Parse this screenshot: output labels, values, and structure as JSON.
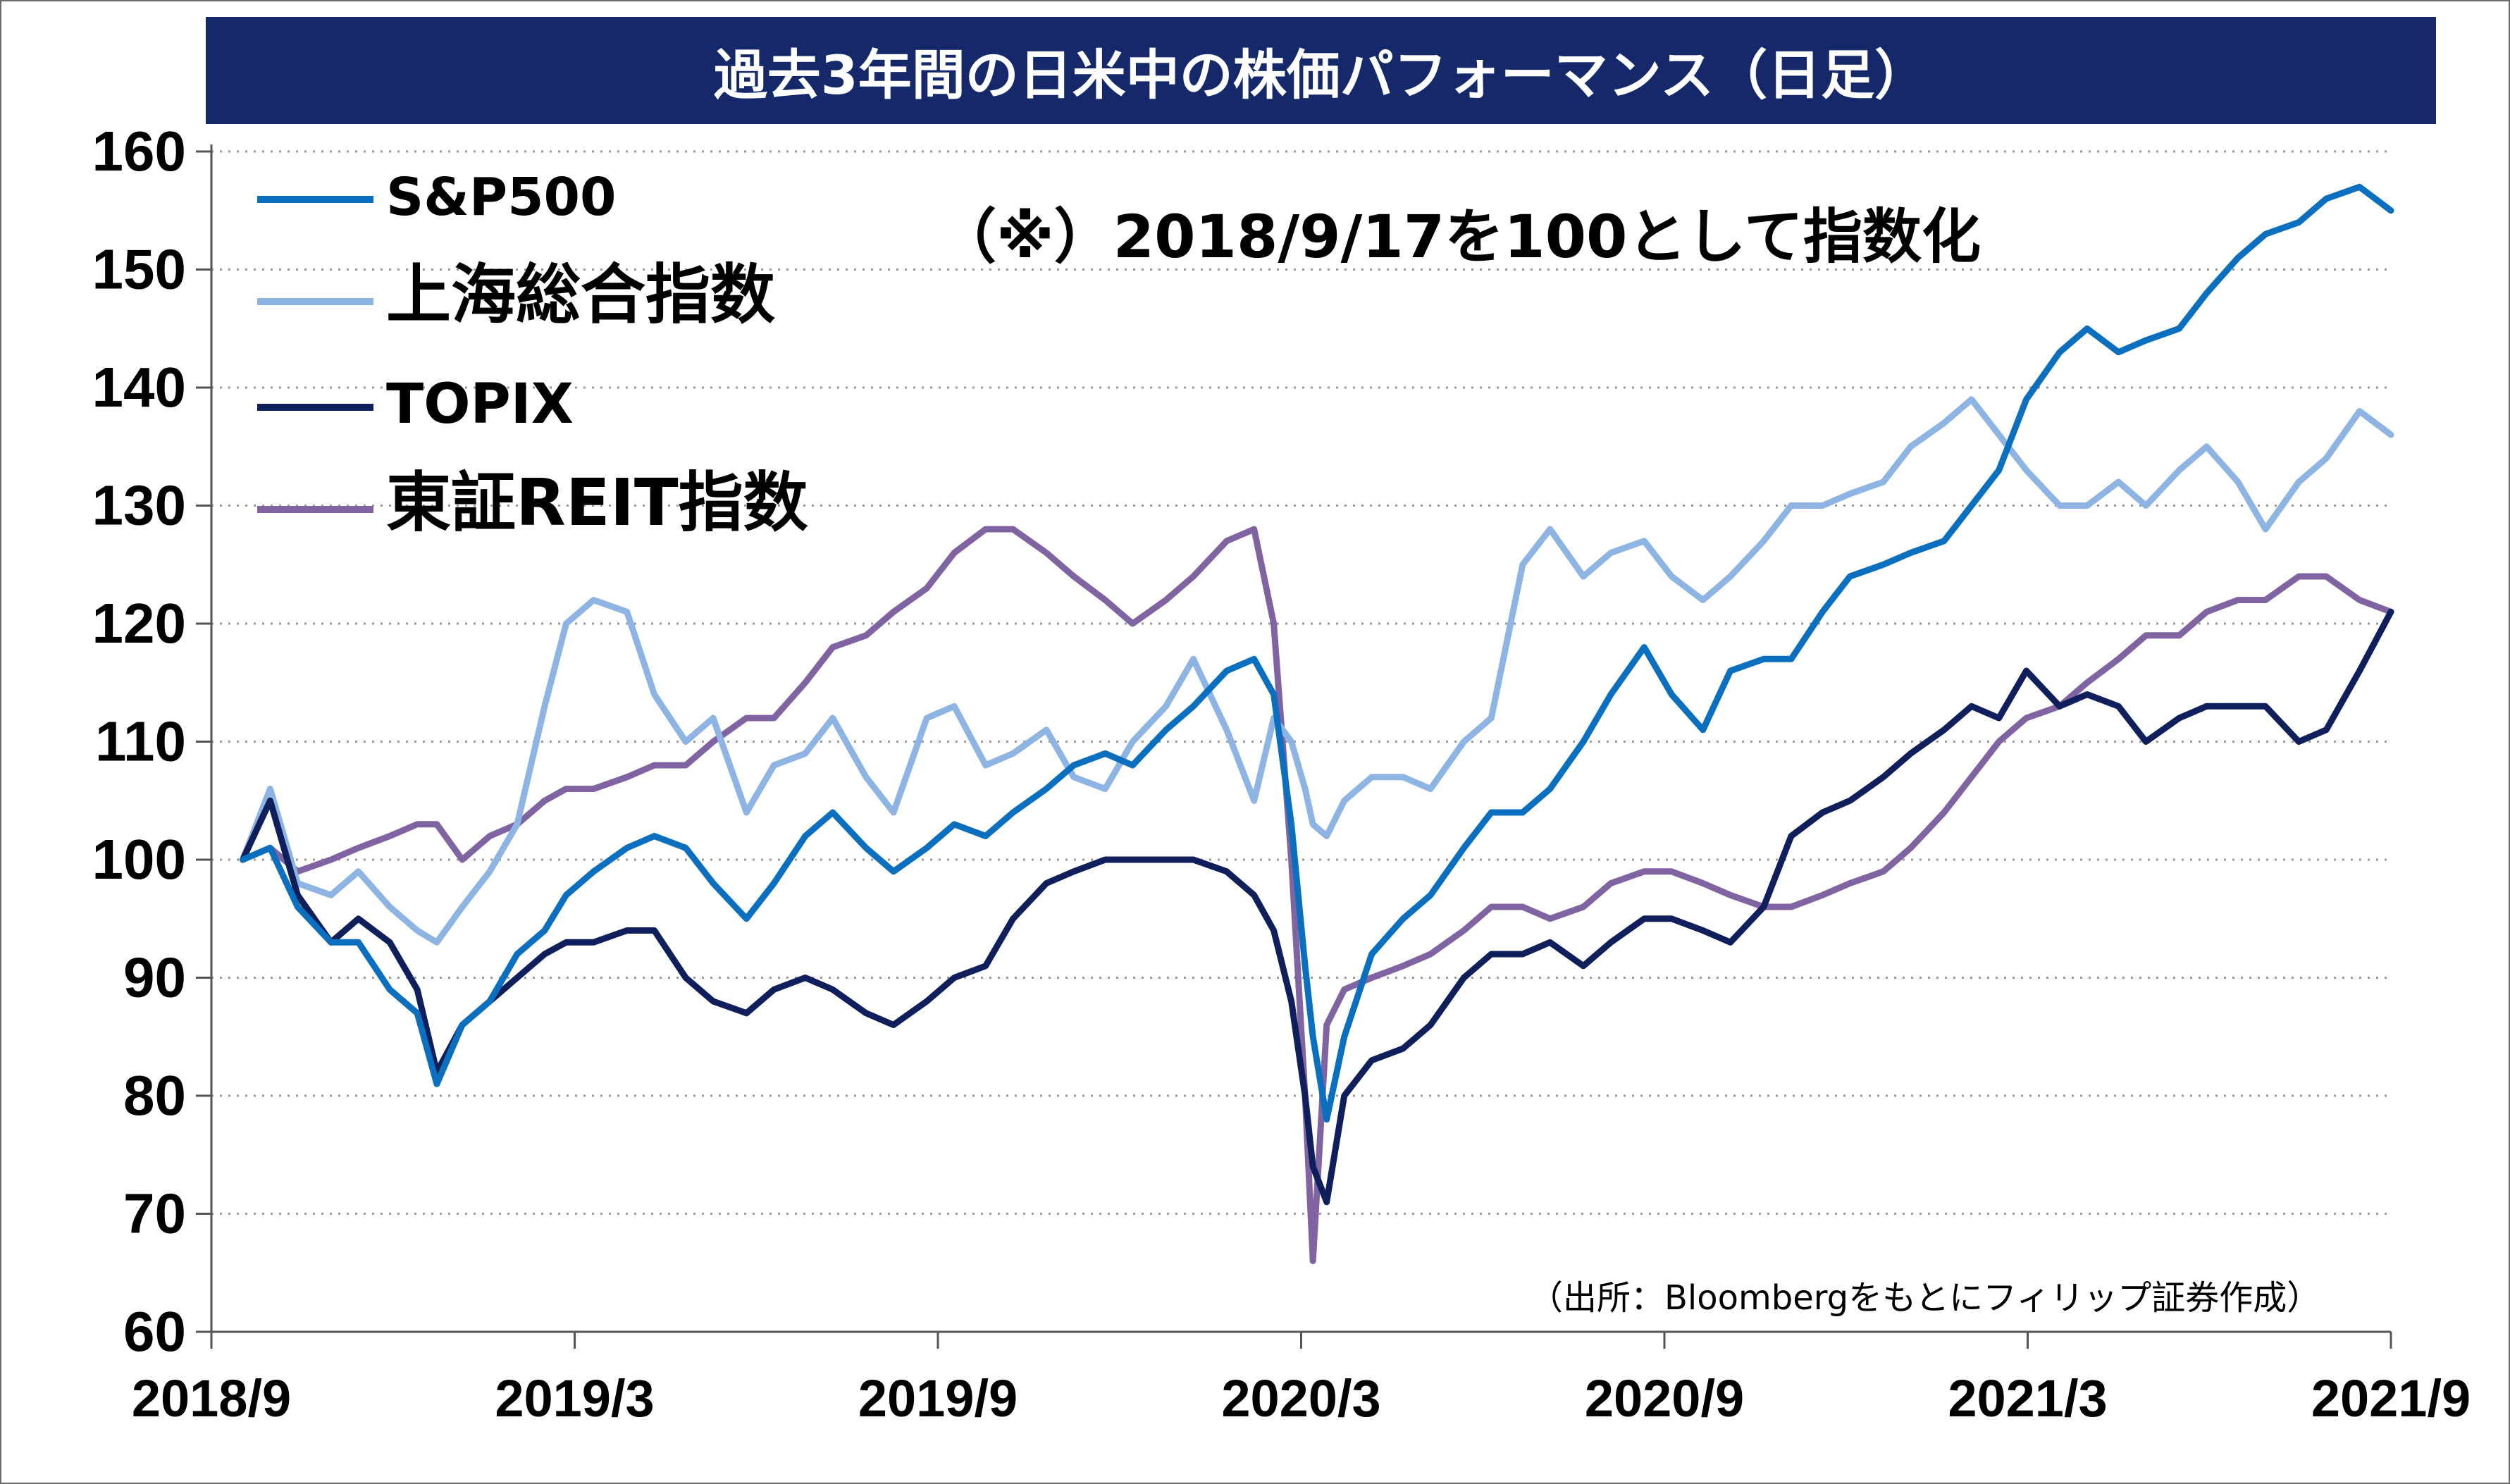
{
  "chart_data": {
    "type": "line",
    "title": "過去3年間の日米中の株価パフォーマンス（日足）",
    "annotation": "（※）2018/9/17を100として指数化",
    "source_note": "（出所：Bloombergをもとにフィリップ証券作成）",
    "x_tick_labels": [
      "2018/9",
      "2019/3",
      "2019/9",
      "2020/3",
      "2020/9",
      "2021/3",
      "2021/9"
    ],
    "x_range": [
      "2018-09",
      "2021-09"
    ],
    "ylim": [
      60,
      160
    ],
    "y_ticks": [
      60,
      70,
      80,
      90,
      100,
      110,
      120,
      130,
      140,
      150,
      160
    ],
    "grid": "horizontal-dotted",
    "legend_position": "top-left",
    "x": [
      "2018-09-17",
      "2018-10-01",
      "2018-10-15",
      "2018-11-01",
      "2018-11-15",
      "2018-12-01",
      "2018-12-15",
      "2018-12-25",
      "2019-01-07",
      "2019-01-21",
      "2019-02-04",
      "2019-02-18",
      "2019-03-01",
      "2019-03-15",
      "2019-04-01",
      "2019-04-15",
      "2019-05-01",
      "2019-05-15",
      "2019-06-01",
      "2019-06-15",
      "2019-07-01",
      "2019-07-15",
      "2019-08-01",
      "2019-08-15",
      "2019-09-01",
      "2019-09-15",
      "2019-10-01",
      "2019-10-15",
      "2019-11-01",
      "2019-11-15",
      "2019-12-01",
      "2019-12-15",
      "2020-01-01",
      "2020-01-15",
      "2020-02-01",
      "2020-02-15",
      "2020-02-25",
      "2020-03-05",
      "2020-03-12",
      "2020-03-16",
      "2020-03-23",
      "2020-04-01",
      "2020-04-15",
      "2020-05-01",
      "2020-05-15",
      "2020-06-01",
      "2020-06-15",
      "2020-07-01",
      "2020-07-15",
      "2020-08-01",
      "2020-08-15",
      "2020-09-01",
      "2020-09-15",
      "2020-10-01",
      "2020-10-15",
      "2020-11-01",
      "2020-11-15",
      "2020-12-01",
      "2020-12-15",
      "2021-01-01",
      "2021-01-15",
      "2021-02-01",
      "2021-02-15",
      "2021-03-01",
      "2021-03-15",
      "2021-04-01",
      "2021-04-15",
      "2021-05-01",
      "2021-05-15",
      "2021-06-01",
      "2021-06-15",
      "2021-07-01",
      "2021-07-15",
      "2021-08-01",
      "2021-08-15",
      "2021-09-01",
      "2021-09-17"
    ],
    "series": [
      {
        "name": "S&P500",
        "color": "#0b6fc0",
        "values": [
          100,
          101,
          96,
          93,
          93,
          89,
          87,
          81,
          86,
          88,
          92,
          94,
          97,
          99,
          101,
          102,
          101,
          98,
          95,
          98,
          102,
          104,
          101,
          99,
          101,
          103,
          102,
          104,
          106,
          108,
          109,
          108,
          111,
          113,
          116,
          117,
          114,
          103,
          91,
          85,
          78,
          85,
          92,
          95,
          97,
          101,
          104,
          104,
          106,
          110,
          114,
          118,
          114,
          111,
          116,
          117,
          117,
          121,
          124,
          125,
          126,
          127,
          130,
          133,
          139,
          143,
          145,
          143,
          144,
          145,
          148,
          151,
          153,
          154,
          156,
          157,
          155
        ]
      },
      {
        "name": "上海総合指数",
        "color": "#8eb4e3",
        "values": [
          100,
          106,
          98,
          97,
          99,
          96,
          94,
          93,
          96,
          99,
          103,
          113,
          120,
          122,
          121,
          114,
          110,
          112,
          104,
          108,
          109,
          112,
          107,
          104,
          112,
          113,
          108,
          109,
          111,
          107,
          106,
          110,
          113,
          117,
          111,
          105,
          112,
          110,
          106,
          103,
          102,
          105,
          107,
          107,
          106,
          110,
          112,
          125,
          128,
          124,
          126,
          127,
          124,
          122,
          124,
          127,
          130,
          130,
          131,
          132,
          135,
          137,
          139,
          136,
          133,
          130,
          130,
          132,
          130,
          133,
          135,
          132,
          128,
          132,
          134,
          138,
          136
        ]
      },
      {
        "name": "TOPIX",
        "color": "#0e1f5b",
        "values": [
          100,
          105,
          97,
          93,
          95,
          93,
          89,
          82,
          86,
          88,
          90,
          92,
          93,
          93,
          94,
          94,
          90,
          88,
          87,
          89,
          90,
          89,
          87,
          86,
          88,
          90,
          91,
          95,
          98,
          99,
          100,
          100,
          100,
          100,
          99,
          97,
          94,
          88,
          80,
          74,
          71,
          80,
          83,
          84,
          86,
          90,
          92,
          92,
          93,
          91,
          93,
          95,
          95,
          94,
          93,
          96,
          102,
          104,
          105,
          107,
          109,
          111,
          113,
          112,
          116,
          113,
          114,
          113,
          110,
          112,
          113,
          113,
          113,
          110,
          111,
          116,
          121
        ]
      },
      {
        "name": "東証REIT指数",
        "color": "#8064a2",
        "values": [
          100,
          101,
          99,
          100,
          101,
          102,
          103,
          103,
          100,
          102,
          103,
          105,
          106,
          106,
          107,
          108,
          108,
          110,
          112,
          112,
          115,
          118,
          119,
          121,
          123,
          126,
          128,
          128,
          126,
          124,
          122,
          120,
          122,
          124,
          127,
          128,
          120,
          100,
          80,
          66,
          86,
          89,
          90,
          91,
          92,
          94,
          96,
          96,
          95,
          96,
          98,
          99,
          99,
          98,
          97,
          96,
          96,
          97,
          98,
          99,
          101,
          104,
          107,
          110,
          112,
          113,
          115,
          117,
          119,
          119,
          121,
          122,
          122,
          124,
          124,
          122,
          121
        ]
      }
    ]
  }
}
